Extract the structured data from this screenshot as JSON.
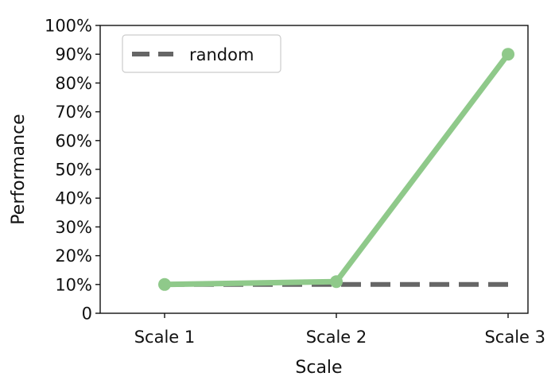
{
  "chart_data": {
    "type": "line",
    "categories": [
      "Scale 1",
      "Scale 2",
      "Scale 3"
    ],
    "series": [
      {
        "name": "",
        "values": [
          10,
          11,
          90
        ],
        "color": "#8fc98a",
        "style": "solid",
        "markers": true
      },
      {
        "name": "random",
        "values": [
          10,
          10,
          10
        ],
        "color": "#666666",
        "style": "dashed",
        "markers": false
      }
    ],
    "xlabel": "Scale",
    "ylabel": "Performance",
    "ylim": [
      0,
      100
    ],
    "yticks": [
      "0",
      "10%",
      "20%",
      "30%",
      "40%",
      "50%",
      "60%",
      "70%",
      "80%",
      "90%",
      "100%"
    ],
    "grid": false,
    "legend_position": "top-left"
  }
}
